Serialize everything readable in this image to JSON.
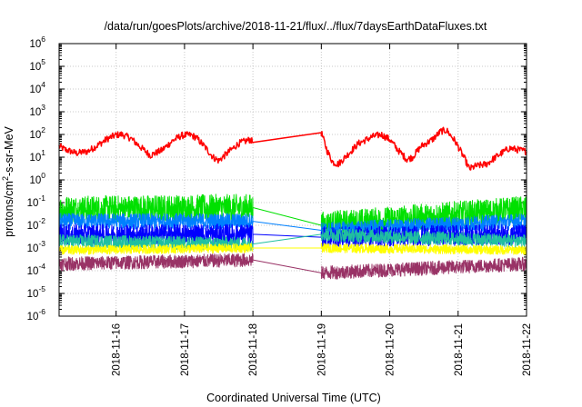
{
  "chart_data": {
    "type": "line",
    "title": "/data/run/goesPlots/archive/2018-11-21/flux/../flux/7daysEarthDataFluxes.txt",
    "xlabel": "Coordinated Universal Time (UTC)",
    "ylabel": {
      "prefix": "protons/cm",
      "sup": "2",
      "suffix": "-s-sr-MeV"
    },
    "y_scale": "log",
    "ylim": [
      1e-06,
      1000000.0
    ],
    "y_ticks": [
      {
        "exp": "-6",
        "value": 1e-06
      },
      {
        "exp": "-5",
        "value": 1e-05
      },
      {
        "exp": "-4",
        "value": 0.0001
      },
      {
        "exp": "-3",
        "value": 0.001
      },
      {
        "exp": "-2",
        "value": 0.01
      },
      {
        "exp": "-1",
        "value": 0.1
      },
      {
        "exp": "0",
        "value": 1
      },
      {
        "exp": "1",
        "value": 10
      },
      {
        "exp": "2",
        "value": 100
      },
      {
        "exp": "3",
        "value": 1000
      },
      {
        "exp": "4",
        "value": 10000
      },
      {
        "exp": "5",
        "value": 100000
      },
      {
        "exp": "6",
        "value": 1000000
      }
    ],
    "y_tick_base": "10",
    "xlim": [
      "2018-11-15T04:00",
      "2018-11-22T00:00"
    ],
    "x_ticks": [
      "2018-11-16",
      "2018-11-17",
      "2018-11-18",
      "2018-11-19",
      "2018-11-20",
      "2018-11-21",
      "2018-11-22"
    ],
    "grid": true,
    "data_gap": [
      "2018-11-18T00:00",
      "2018-11-19T00:00"
    ],
    "series": [
      {
        "color": "#ff0000",
        "noise": 0.15,
        "points": [
          [
            "2018-11-15T04:00",
            30
          ],
          [
            "2018-11-15T06:00",
            22
          ],
          [
            "2018-11-15T10:00",
            15
          ],
          [
            "2018-11-15T14:00",
            18
          ],
          [
            "2018-11-15T17:00",
            30
          ],
          [
            "2018-11-15T21:00",
            65
          ],
          [
            "2018-11-16T00:00",
            95
          ],
          [
            "2018-11-16T02:00",
            100
          ],
          [
            "2018-11-16T05:00",
            70
          ],
          [
            "2018-11-16T09:00",
            25
          ],
          [
            "2018-11-16T12:00",
            12
          ],
          [
            "2018-11-16T16:00",
            20
          ],
          [
            "2018-11-16T20:00",
            55
          ],
          [
            "2018-11-16T23:00",
            90
          ],
          [
            "2018-11-17T02:00",
            95
          ],
          [
            "2018-11-17T04:00",
            75
          ],
          [
            "2018-11-17T07:00",
            30
          ],
          [
            "2018-11-17T10:00",
            10
          ],
          [
            "2018-11-17T12:00",
            7
          ],
          [
            "2018-11-17T15:00",
            15
          ],
          [
            "2018-11-17T19:00",
            40
          ],
          [
            "2018-11-17T23:00",
            60
          ],
          [
            "2018-11-18T00:00",
            45
          ],
          [
            "2018-11-19T00:00",
            120
          ],
          [
            "2018-11-19T02:00",
            20
          ],
          [
            "2018-11-19T04:00",
            6
          ],
          [
            "2018-11-19T06:00",
            5
          ],
          [
            "2018-11-19T09:00",
            12
          ],
          [
            "2018-11-19T13:00",
            40
          ],
          [
            "2018-11-19T18:00",
            80
          ],
          [
            "2018-11-19T21:00",
            100
          ],
          [
            "2018-11-20T00:00",
            60
          ],
          [
            "2018-11-20T03:00",
            20
          ],
          [
            "2018-11-20T06:00",
            8
          ],
          [
            "2018-11-20T08:00",
            10
          ],
          [
            "2018-11-20T11:00",
            30
          ],
          [
            "2018-11-20T15:00",
            60
          ],
          [
            "2018-11-20T18:00",
            140
          ],
          [
            "2018-11-20T20:00",
            150
          ],
          [
            "2018-11-20T23:00",
            50
          ],
          [
            "2018-11-21T02:00",
            10
          ],
          [
            "2018-11-21T04:00",
            3
          ],
          [
            "2018-11-21T06:00",
            4
          ],
          [
            "2018-11-21T10:00",
            5
          ],
          [
            "2018-11-21T14:00",
            12
          ],
          [
            "2018-11-21T18:00",
            25
          ],
          [
            "2018-11-21T22:00",
            20
          ],
          [
            "2018-11-22T00:00",
            18
          ]
        ]
      },
      {
        "color": "#00e000",
        "noise": 0.6,
        "points": [
          [
            "2018-11-15T04:00",
            0.05
          ],
          [
            "2018-11-18T00:00",
            0.06
          ],
          [
            "2018-11-19T00:00",
            0.01
          ],
          [
            "2018-11-22T00:00",
            0.05
          ]
        ]
      },
      {
        "color": "#0080ff",
        "noise": 0.35,
        "points": [
          [
            "2018-11-15T04:00",
            0.015
          ],
          [
            "2018-11-18T00:00",
            0.015
          ],
          [
            "2018-11-19T00:00",
            0.006
          ],
          [
            "2018-11-22T00:00",
            0.015
          ]
        ]
      },
      {
        "color": "#0000ff",
        "noise": 0.45,
        "points": [
          [
            "2018-11-15T04:00",
            0.004
          ],
          [
            "2018-11-18T00:00",
            0.004
          ],
          [
            "2018-11-19T00:00",
            0.003
          ],
          [
            "2018-11-22T00:00",
            0.004
          ]
        ]
      },
      {
        "color": "#20c0a0",
        "noise": 0.3,
        "points": [
          [
            "2018-11-15T04:00",
            0.002
          ],
          [
            "2018-11-18T00:00",
            0.0015
          ],
          [
            "2018-11-19T00:00",
            0.004
          ],
          [
            "2018-11-22T00:00",
            0.002
          ]
        ]
      },
      {
        "color": "#ffff00",
        "noise": 0.2,
        "points": [
          [
            "2018-11-15T04:00",
            0.0008
          ],
          [
            "2018-11-18T00:00",
            0.001
          ],
          [
            "2018-11-19T00:00",
            0.001
          ],
          [
            "2018-11-22T00:00",
            0.0008
          ]
        ]
      },
      {
        "color": "#993366",
        "noise": 0.3,
        "points": [
          [
            "2018-11-15T04:00",
            0.0002
          ],
          [
            "2018-11-18T00:00",
            0.0003
          ],
          [
            "2018-11-19T00:00",
            8e-05
          ],
          [
            "2018-11-22T00:00",
            0.0002
          ]
        ]
      }
    ]
  }
}
